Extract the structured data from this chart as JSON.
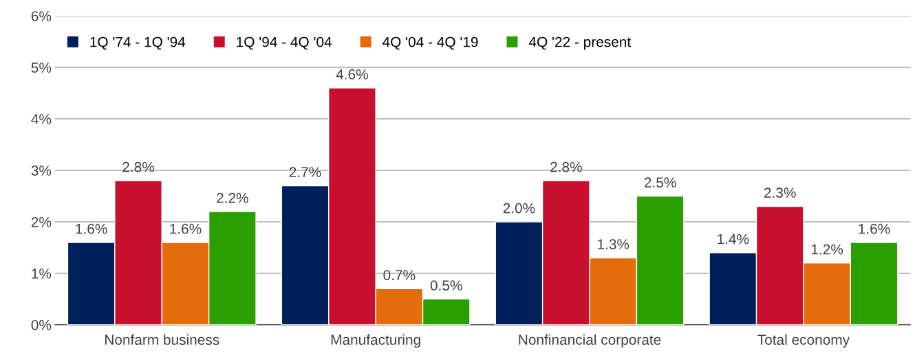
{
  "chart_data": {
    "type": "bar",
    "categories": [
      "Nonfarm business",
      "Manufacturing",
      "Nonfinancial corporate",
      "Total economy"
    ],
    "series": [
      {
        "name": "1Q '74 - 1Q '94",
        "color": "#00205b",
        "values": [
          1.6,
          2.7,
          2.0,
          1.4
        ],
        "value_labels": [
          "1.6%",
          "2.7%",
          "2.0%",
          "1.4%"
        ]
      },
      {
        "name": "1Q '94 - 4Q '04",
        "color": "#c8102e",
        "values": [
          2.8,
          4.6,
          2.8,
          2.3
        ],
        "value_labels": [
          "2.8%",
          "4.6%",
          "2.8%",
          "2.3%"
        ]
      },
      {
        "name": "4Q '04 - 4Q '19",
        "color": "#e46c0a",
        "values": [
          1.6,
          0.7,
          1.3,
          1.2
        ],
        "value_labels": [
          "1.6%",
          "0.7%",
          "1.3%",
          "1.2%"
        ]
      },
      {
        "name": "4Q '22 - present",
        "color": "#2aa000",
        "values": [
          2.2,
          0.5,
          2.5,
          1.6
        ],
        "value_labels": [
          "2.2%",
          "0.5%",
          "2.5%",
          "1.6%"
        ]
      }
    ],
    "ylim": [
      0,
      6
    ],
    "yticks": [
      {
        "value": 0,
        "label": "0%"
      },
      {
        "value": 1,
        "label": "1%"
      },
      {
        "value": 2,
        "label": "2%"
      },
      {
        "value": 3,
        "label": "3%"
      },
      {
        "value": 4,
        "label": "4%"
      },
      {
        "value": 5,
        "label": "5%"
      },
      {
        "value": 6,
        "label": "6%"
      }
    ],
    "grid": "y",
    "legend": "top left"
  }
}
